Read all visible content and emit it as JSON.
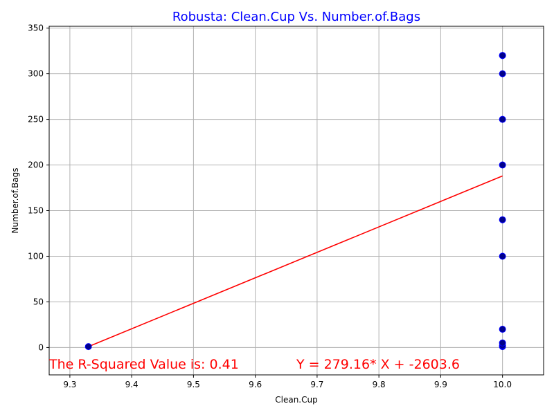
{
  "chart_data": {
    "type": "scatter",
    "title": "Robusta: Clean.Cup Vs. Number.of.Bags",
    "xlabel": "Clean.Cup",
    "ylabel": "Number.of.Bags",
    "xlim": [
      9.2665,
      10.0665
    ],
    "ylim": [
      -30,
      352
    ],
    "xticks": [
      9.3,
      9.4,
      9.5,
      9.6,
      9.7,
      9.8,
      9.9,
      10.0
    ],
    "xtick_labels": [
      "9.3",
      "9.4",
      "9.5",
      "9.6",
      "9.7",
      "9.8",
      "9.9",
      "10.0"
    ],
    "yticks": [
      0,
      50,
      100,
      150,
      200,
      250,
      300,
      350
    ],
    "ytick_labels": [
      "0",
      "50",
      "100",
      "150",
      "200",
      "250",
      "300",
      "350"
    ],
    "grid": true,
    "points": {
      "x": [
        9.33,
        10.0,
        10.0,
        10.0,
        10.0,
        10.0,
        10.0,
        10.0,
        10.0,
        10.0,
        10.0,
        10.0
      ],
      "y": [
        1,
        1,
        2,
        5,
        20,
        100,
        140,
        200,
        250,
        300,
        320,
        320
      ]
    },
    "regression": {
      "x": [
        9.33,
        10.0
      ],
      "y": [
        1.0,
        188.0
      ]
    },
    "annotations": {
      "r_squared": "The R-Squared Value is: 0.41",
      "equation": "Y = 279.16* X + -2603.6"
    },
    "colors": {
      "title": "#0000ff",
      "point_fill": "#00008b",
      "point_edge": "#0000ff",
      "line": "#ff0000",
      "annotation": "#ff0000",
      "grid": "#b0b0b0"
    }
  }
}
